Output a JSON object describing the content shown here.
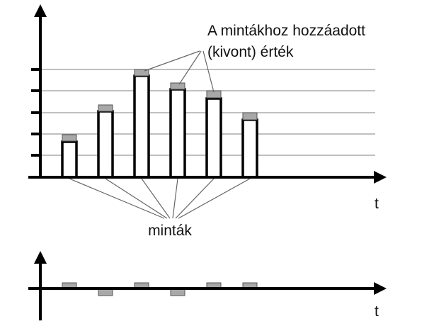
{
  "annotation": {
    "line1": "A mintákhoz hozzáadott",
    "line2": "(kivont) érték"
  },
  "top_axis_label": "t",
  "samples_label": "minták",
  "bottom_axis_label": "t"
}
